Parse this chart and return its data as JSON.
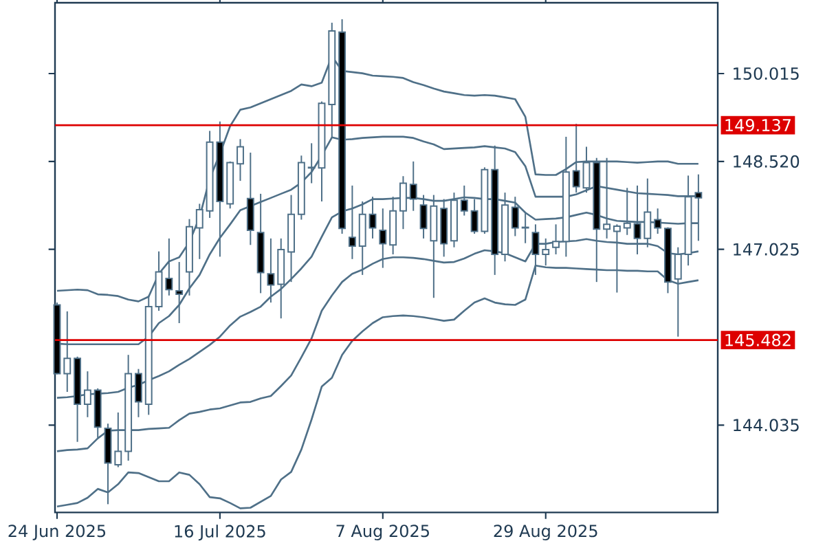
{
  "chart_data": {
    "type": "candlestick",
    "color": "#4f7088",
    "categories": [
      "24 Jun 2025",
      null,
      null,
      null,
      null,
      null,
      null,
      null,
      null,
      null,
      null,
      null,
      null,
      null,
      null,
      null,
      "16 Jul 2025",
      null,
      null,
      null,
      null,
      null,
      null,
      null,
      null,
      null,
      null,
      null,
      null,
      null,
      null,
      null,
      "7 Aug 2025",
      null,
      null,
      null,
      null,
      null,
      null,
      null,
      null,
      null,
      null,
      null,
      null,
      null,
      null,
      null,
      "29 Aug 2025",
      null,
      null,
      null,
      null,
      null,
      null,
      null,
      null,
      null,
      null,
      null,
      null,
      null,
      null,
      null
    ],
    "ohlc": [
      [
        146.08,
        146.12,
        144.9,
        144.91
      ],
      [
        144.91,
        145.97,
        144.6,
        145.17
      ],
      [
        145.17,
        145.2,
        143.75,
        144.39
      ],
      [
        144.39,
        144.95,
        144.17,
        144.63
      ],
      [
        144.63,
        144.66,
        143.82,
        144.0
      ],
      [
        143.98,
        144.06,
        142.69,
        143.39
      ],
      [
        143.36,
        144.25,
        143.32,
        143.59
      ],
      [
        143.59,
        145.23,
        143.43,
        144.91
      ],
      [
        144.91,
        144.99,
        144.17,
        144.43
      ],
      [
        144.39,
        146.24,
        144.21,
        146.05
      ],
      [
        146.05,
        146.99,
        145.98,
        146.64
      ],
      [
        146.53,
        147.21,
        146.24,
        146.34
      ],
      [
        146.32,
        146.81,
        145.77,
        146.26
      ],
      [
        146.64,
        147.54,
        146.24,
        147.41
      ],
      [
        147.39,
        147.8,
        146.86,
        147.7
      ],
      [
        147.68,
        149.04,
        147.56,
        148.85
      ],
      [
        148.85,
        149.2,
        146.9,
        147.84
      ],
      [
        147.8,
        148.52,
        147.72,
        148.5
      ],
      [
        148.48,
        148.9,
        148.19,
        148.77
      ],
      [
        147.89,
        148.67,
        147.1,
        147.35
      ],
      [
        147.31,
        147.97,
        146.28,
        146.63
      ],
      [
        146.61,
        147.21,
        146.12,
        146.42
      ],
      [
        146.43,
        147.21,
        145.85,
        147.02
      ],
      [
        146.98,
        147.95,
        146.47,
        147.62
      ],
      [
        147.62,
        148.62,
        147.53,
        148.5
      ],
      [
        148.41,
        148.83,
        148.15,
        148.42
      ],
      [
        148.41,
        149.54,
        147.84,
        149.51
      ],
      [
        149.49,
        150.88,
        148.93,
        150.74
      ],
      [
        150.72,
        150.94,
        147.29,
        147.38
      ],
      [
        147.23,
        148.11,
        146.86,
        147.08
      ],
      [
        147.08,
        147.84,
        146.59,
        147.62
      ],
      [
        147.62,
        147.92,
        147.21,
        147.39
      ],
      [
        147.35,
        147.72,
        146.71,
        147.12
      ],
      [
        147.1,
        147.92,
        146.94,
        147.68
      ],
      [
        147.68,
        148.27,
        147.37,
        148.15
      ],
      [
        148.13,
        148.52,
        147.68,
        147.88
      ],
      [
        147.78,
        147.95,
        147.21,
        147.38
      ],
      [
        147.17,
        147.95,
        146.2,
        147.76
      ],
      [
        147.72,
        147.88,
        146.9,
        147.12
      ],
      [
        147.17,
        147.99,
        147.06,
        147.86
      ],
      [
        147.86,
        148.11,
        147.6,
        147.68
      ],
      [
        147.68,
        147.88,
        147.29,
        147.33
      ],
      [
        147.33,
        148.42,
        147.29,
        148.38
      ],
      [
        148.38,
        148.79,
        146.59,
        146.94
      ],
      [
        146.94,
        147.99,
        146.82,
        147.78
      ],
      [
        147.74,
        147.92,
        147.25,
        147.39
      ],
      [
        147.39,
        147.64,
        147.13,
        147.4
      ],
      [
        147.31,
        147.45,
        146.59,
        146.94
      ],
      [
        146.94,
        147.21,
        146.75,
        147.02
      ],
      [
        147.06,
        147.45,
        146.94,
        147.16
      ],
      [
        147.16,
        148.94,
        146.9,
        148.34
      ],
      [
        148.36,
        149.16,
        147.99,
        148.09
      ],
      [
        148.07,
        148.77,
        147.99,
        148.5
      ],
      [
        148.5,
        148.58,
        146.47,
        147.37
      ],
      [
        147.37,
        148.58,
        147.21,
        147.45
      ],
      [
        147.33,
        147.45,
        146.29,
        147.42
      ],
      [
        147.39,
        148.07,
        147.27,
        147.47
      ],
      [
        147.46,
        148.11,
        146.94,
        147.21
      ],
      [
        147.21,
        148.23,
        147.06,
        147.66
      ],
      [
        147.53,
        147.72,
        147.29,
        147.39
      ],
      [
        147.38,
        147.4,
        146.28,
        146.47
      ],
      [
        146.52,
        147.06,
        145.54,
        146.94
      ],
      [
        146.94,
        148.28,
        146.75,
        147.92
      ],
      [
        147.99,
        148.3,
        147.17,
        147.9
      ]
    ],
    "series": [
      {
        "type": "line",
        "color": "#4f7088",
        "values": [
          146.32,
          146.33,
          146.34,
          146.33,
          146.26,
          146.25,
          146.23,
          146.17,
          146.14,
          146.22,
          146.61,
          146.82,
          146.89,
          147.15,
          147.57,
          148.23,
          148.65,
          149.12,
          149.4,
          149.44,
          149.51,
          149.58,
          149.65,
          149.72,
          149.83,
          149.8,
          149.86,
          150.31,
          150.06,
          150.04,
          150.02,
          149.98,
          149.97,
          149.96,
          149.94,
          149.87,
          149.82,
          149.76,
          149.71,
          149.68,
          149.65,
          149.64,
          149.65,
          149.64,
          149.61,
          149.58,
          149.28,
          148.3,
          148.29,
          148.29,
          148.39,
          148.51,
          148.52,
          148.52,
          148.52,
          148.52,
          148.51,
          148.5,
          148.51,
          148.52,
          148.52,
          148.48,
          148.48,
          148.48
        ]
      },
      {
        "type": "line",
        "color": "#4f7088",
        "values": [
          145.42,
          145.41,
          145.41,
          145.41,
          145.41,
          145.41,
          145.41,
          145.41,
          145.41,
          145.54,
          145.77,
          145.89,
          146.08,
          146.36,
          146.59,
          146.94,
          147.22,
          147.45,
          147.69,
          147.76,
          147.83,
          147.9,
          147.97,
          148.04,
          148.16,
          148.34,
          148.62,
          148.93,
          148.89,
          148.9,
          148.92,
          148.93,
          148.94,
          148.94,
          148.94,
          148.92,
          148.86,
          148.81,
          148.73,
          148.74,
          148.75,
          148.76,
          148.78,
          148.76,
          148.74,
          148.68,
          148.44,
          147.92,
          147.92,
          147.92,
          147.92,
          147.96,
          148.03,
          148.1,
          148.07,
          148.04,
          148.01,
          147.98,
          147.97,
          147.96,
          147.95,
          147.93,
          147.93,
          147.93
        ]
      },
      {
        "type": "line",
        "color": "#4f7088",
        "values": [
          144.5,
          144.51,
          144.53,
          144.56,
          144.57,
          144.58,
          144.6,
          144.67,
          144.72,
          144.8,
          144.87,
          144.95,
          145.06,
          145.16,
          145.28,
          145.4,
          145.54,
          145.73,
          145.88,
          145.96,
          146.05,
          146.22,
          146.35,
          146.52,
          146.7,
          146.9,
          147.24,
          147.57,
          147.67,
          147.72,
          147.79,
          147.88,
          147.88,
          147.89,
          147.9,
          147.9,
          147.88,
          147.85,
          147.85,
          147.88,
          147.91,
          147.9,
          147.88,
          147.88,
          147.85,
          147.82,
          147.65,
          147.53,
          147.54,
          147.55,
          147.57,
          147.61,
          147.65,
          147.61,
          147.55,
          147.51,
          147.5,
          147.49,
          147.49,
          147.48,
          147.47,
          147.46,
          147.47,
          147.47
        ]
      },
      {
        "type": "line",
        "color": "#4f7088",
        "values": [
          143.59,
          143.61,
          143.62,
          143.64,
          143.81,
          143.94,
          143.95,
          143.95,
          143.95,
          143.97,
          143.98,
          143.99,
          144.12,
          144.23,
          144.26,
          144.3,
          144.32,
          144.37,
          144.42,
          144.43,
          144.49,
          144.53,
          144.7,
          144.88,
          145.19,
          145.51,
          145.98,
          146.24,
          146.47,
          146.61,
          146.68,
          146.78,
          146.86,
          146.89,
          146.89,
          146.88,
          146.86,
          146.83,
          146.8,
          146.81,
          146.87,
          146.95,
          147.01,
          146.99,
          146.96,
          146.89,
          146.82,
          147.12,
          147.12,
          147.15,
          147.16,
          147.17,
          147.2,
          147.17,
          147.15,
          147.14,
          147.12,
          147.12,
          147.12,
          147.08,
          146.96,
          146.94,
          146.96,
          146.99
        ]
      },
      {
        "type": "line",
        "color": "#4f7088",
        "values": [
          142.65,
          142.68,
          142.71,
          142.8,
          142.95,
          142.89,
          143.03,
          143.23,
          143.22,
          143.15,
          143.08,
          143.08,
          143.23,
          143.19,
          143.03,
          142.81,
          142.79,
          142.71,
          142.62,
          142.63,
          142.73,
          142.83,
          143.11,
          143.24,
          143.62,
          144.13,
          144.69,
          144.84,
          145.23,
          145.47,
          145.63,
          145.77,
          145.87,
          145.89,
          145.9,
          145.89,
          145.87,
          145.84,
          145.81,
          145.83,
          145.98,
          146.12,
          146.19,
          146.12,
          146.09,
          146.08,
          146.17,
          146.75,
          146.72,
          146.71,
          146.71,
          146.7,
          146.69,
          146.68,
          146.67,
          146.67,
          146.66,
          146.66,
          146.65,
          146.65,
          146.5,
          146.44,
          146.47,
          146.5
        ]
      }
    ],
    "ylim": [
      142.55,
      151.22
    ],
    "yticks": [
      144.035,
      147.025,
      {
        "value": 148.52,
        "label": "148.520"
      },
      150.015
    ],
    "ref_lines": [
      {
        "axis": "y",
        "value": 149.137,
        "label": "149.137",
        "color": "#dd0000"
      },
      {
        "axis": "y",
        "value": 145.482,
        "label": "145.482",
        "color": "#dd0000"
      }
    ]
  }
}
